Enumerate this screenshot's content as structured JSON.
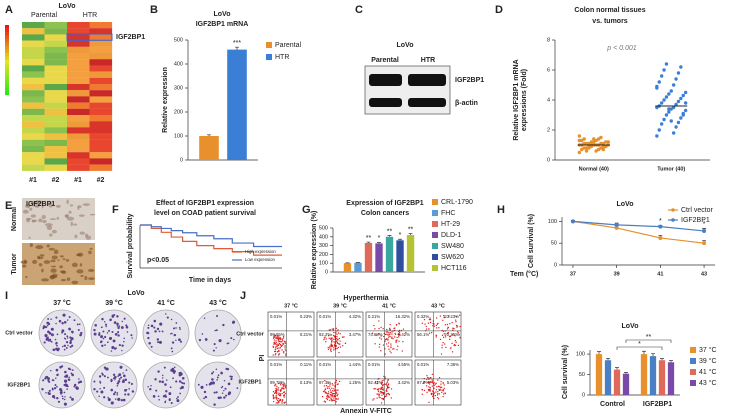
{
  "panel_labels": [
    "A",
    "B",
    "C",
    "D",
    "E",
    "F",
    "G",
    "H",
    "I",
    "J"
  ],
  "heatmap": {
    "title": "LoVo",
    "groups": [
      "Parental",
      "HTR"
    ],
    "samples": [
      "#1",
      "#2",
      "#1",
      "#2"
    ],
    "highlight": "IGF2BP1"
  },
  "western": {
    "title": "LoVo",
    "lanes": [
      "Parental",
      "HTR"
    ],
    "bands": [
      "IGF2BP1",
      "β-actin"
    ]
  },
  "ihc": {
    "stain": "IGF2BP1",
    "rows": [
      "Normal",
      "Tumor"
    ]
  },
  "colony": {
    "title": "LoVo",
    "columns": [
      "37 °C",
      "39 °C",
      "41 °C",
      "43 °C"
    ],
    "rows": [
      "Ctrl vector",
      "IGF2BP1"
    ]
  },
  "flow": {
    "title": "Hyperthermia",
    "columns": [
      "37 °C",
      "39 °C",
      "41 °C",
      "43 °C"
    ],
    "rows": [
      "Ctrl vector",
      "IGF2BP1"
    ],
    "ylabel": "PI",
    "xlabel": "Annexin V-FITC",
    "quadrants": [
      [
        [
          "0.01%",
          "0.23%",
          "99.55%",
          "0.21%"
        ],
        [
          "0.01%",
          "4.32%",
          "92.2%",
          "3.47%"
        ],
        [
          "0.21%",
          "16.32%",
          "74.68%",
          "8.42%"
        ],
        [
          "0.32%",
          "23.23%",
          "56.1%",
          "20.35%"
        ]
      ],
      [
        [
          "0.01%",
          "0.11%",
          "99.78%",
          "0.13%"
        ],
        [
          "0.01%",
          "1.44%",
          "97.3%",
          "1.25%"
        ],
        [
          "0.01%",
          "4.55%",
          "92.42%",
          "3.42%"
        ],
        [
          "0.01%",
          "7.36%",
          "87.9%",
          "5.03%"
        ]
      ]
    ]
  },
  "chart_data": [
    {
      "type": "bar",
      "title": "LoVo",
      "subtitle": "IGF2BP1 mRNA",
      "ylabel": "Relative expression",
      "categories": [
        null
      ],
      "series": [
        {
          "name": "Parental",
          "color": "#e8902c",
          "values": [
            100
          ],
          "errors": [
            5
          ]
        },
        {
          "name": "HTR",
          "color": "#3a7fd5",
          "values": [
            460
          ],
          "errors": [
            10
          ],
          "annotation": "***"
        }
      ],
      "ylim": [
        0,
        500
      ],
      "yticks": [
        0,
        100,
        200,
        300,
        400,
        500
      ]
    },
    {
      "type": "strip",
      "title": "Colon normal tissues",
      "subtitle": "vs. tumors",
      "ylabel": [
        "Relative IGF2BP1 mRNA",
        "expressions (Fold)"
      ],
      "note": "p < 0.001",
      "categories": [
        "Normal (40)",
        "Tumor (40)"
      ],
      "colors": [
        "#e8902c",
        "#3a7fd5"
      ],
      "values": [
        [
          0.5,
          0.6,
          0.7,
          0.7,
          0.8,
          0.8,
          0.8,
          0.9,
          0.9,
          0.9,
          0.9,
          1.0,
          1.0,
          1.0,
          1.0,
          1.0,
          1.0,
          1.1,
          1.1,
          1.1,
          1.1,
          1.1,
          1.2,
          1.2,
          1.2,
          1.2,
          1.3,
          1.3,
          1.3,
          1.4,
          1.4,
          1.5,
          0.6,
          0.7,
          0.8,
          0.9,
          1.0,
          1.2,
          1.4,
          1.6
        ],
        [
          1.6,
          1.8,
          2.0,
          2.2,
          2.4,
          2.5,
          2.7,
          2.8,
          3.0,
          3.1,
          3.2,
          3.3,
          3.4,
          3.5,
          3.5,
          3.6,
          3.7,
          3.8,
          3.9,
          4.0,
          4.1,
          4.2,
          4.3,
          4.4,
          4.5,
          4.6,
          4.8,
          5.0,
          5.2,
          5.4,
          5.6,
          5.8,
          6.0,
          6.2,
          6.4,
          3.0,
          3.4,
          3.8,
          2.6,
          4.9
        ]
      ],
      "means": [
        1.0,
        3.6
      ],
      "ylim": [
        0,
        8
      ],
      "yticks": [
        0,
        2,
        4,
        6,
        8
      ]
    },
    {
      "type": "line",
      "title": "Effect of IGF2BP1 expression",
      "subtitle": "level on COAD patient survival",
      "ylabel": "Survival probability",
      "xlabel": "Time in days",
      "note": "p<0.05",
      "x": [
        0,
        8,
        8,
        15,
        15,
        22,
        22,
        30,
        30,
        40,
        40,
        52,
        52,
        65,
        65,
        80,
        80,
        100
      ],
      "series": [
        {
          "name": "High expression",
          "color": "#e05a3a",
          "values": [
            1,
            1,
            0.92,
            0.92,
            0.83,
            0.83,
            0.72,
            0.72,
            0.62,
            0.62,
            0.52,
            0.52,
            0.45,
            0.45,
            0.38,
            0.38,
            0.3,
            0.3
          ]
        },
        {
          "name": "Low expression",
          "color": "#4a6fc4",
          "values": [
            1,
            1,
            0.96,
            0.96,
            0.92,
            0.92,
            0.87,
            0.87,
            0.82,
            0.82,
            0.75,
            0.75,
            0.68,
            0.68,
            0.58,
            0.58,
            0.5,
            0.5
          ]
        }
      ],
      "xlim": [
        0,
        100
      ],
      "ylim": [
        0,
        1
      ]
    },
    {
      "type": "bar",
      "title": "Expression of IGF2BP1",
      "subtitle": "Colon cancers",
      "ylabel": "Relative expression (%)",
      "categories": [
        null
      ],
      "series": [
        {
          "name": "CRL-1790",
          "color": "#e8902c",
          "values": [
            100
          ],
          "errors": [
            4
          ]
        },
        {
          "name": "FHC",
          "color": "#5b9bd5",
          "values": [
            105
          ],
          "errors": [
            4
          ]
        },
        {
          "name": "HT-29",
          "color": "#e06a5a",
          "values": [
            330
          ],
          "errors": [
            10
          ],
          "annotation": "**"
        },
        {
          "name": "DLD-1",
          "color": "#7a4aa8",
          "values": [
            325
          ],
          "errors": [
            12
          ],
          "annotation": "*"
        },
        {
          "name": "SW480",
          "color": "#3aa6a0",
          "values": [
            400
          ],
          "errors": [
            15
          ],
          "annotation": "**"
        },
        {
          "name": "SW620",
          "color": "#2f4f9e",
          "values": [
            360
          ],
          "errors": [
            12
          ],
          "annotation": "*"
        },
        {
          "name": "HCT116",
          "color": "#b5c232",
          "values": [
            420
          ],
          "errors": [
            18
          ],
          "annotation": "**"
        }
      ],
      "ylim": [
        0,
        500
      ],
      "yticks": [
        0,
        100,
        200,
        300,
        400,
        500
      ]
    },
    {
      "type": "line",
      "title": "LoVo",
      "ylabel": "Cell survival (%)",
      "xlabel": "Tem (°C)",
      "markers": true,
      "x": [
        37,
        39,
        41,
        43
      ],
      "series": [
        {
          "name": "Ctrl vector",
          "color": "#e8902c",
          "values": [
            100,
            85,
            62,
            50
          ],
          "errors": [
            2,
            5,
            6,
            6
          ]
        },
        {
          "name": "IGF2BP1",
          "color": "#4a7fc4",
          "values": [
            100,
            92,
            88,
            78
          ],
          "errors": [
            2,
            4,
            3,
            6
          ]
        }
      ],
      "annotations": [
        {
          "x": 41,
          "text": "*"
        },
        {
          "x": 43,
          "text": "*"
        }
      ],
      "xlim": [
        36.5,
        43.5
      ],
      "xticks": [
        37,
        39,
        41,
        43
      ],
      "ylim": [
        0,
        110
      ],
      "yticks": [
        0,
        50,
        100
      ]
    },
    {
      "type": "bar",
      "title": "LoVo",
      "ylabel": "Cell survival (%)",
      "categories": [
        "Control",
        "IGF2BP1"
      ],
      "series": [
        {
          "name": "37 °C",
          "color": "#e8902c",
          "values": [
            100,
            100
          ],
          "errors": [
            6,
            7
          ]
        },
        {
          "name": "39 °C",
          "color": "#4a7fc4",
          "values": [
            85,
            95
          ],
          "errors": [
            4,
            6
          ]
        },
        {
          "name": "41 °C",
          "color": "#e06a5a",
          "values": [
            62,
            85
          ],
          "errors": [
            5,
            4
          ]
        },
        {
          "name": "43 °C",
          "color": "#7a4aa8",
          "values": [
            52,
            80
          ],
          "errors": [
            3,
            4
          ]
        }
      ],
      "annotations": [
        "*",
        "**"
      ],
      "ylim": [
        0,
        110
      ],
      "yticks": [
        0,
        50,
        100
      ]
    }
  ]
}
